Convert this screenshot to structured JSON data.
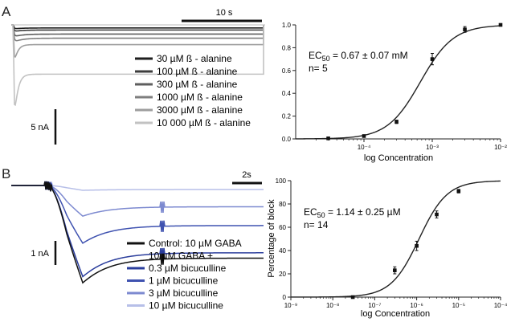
{
  "panels": [
    {
      "label": "A",
      "scale_bars": {
        "time": "10 s",
        "current": "5 nA"
      },
      "legend": [
        {
          "text": "30 µM ß - alanine",
          "color": "#1e1e1e"
        },
        {
          "text": "100 µM ß - alanine",
          "color": "#3c3c3c"
        },
        {
          "text": "300 µM ß - alanine",
          "color": "#5e5e5e"
        },
        {
          "text": "1000 µM ß - alanine",
          "color": "#7e7e7e"
        },
        {
          "text": "3000 µM ß - alanine",
          "color": "#9e9e9e"
        },
        {
          "text": "10 000 µM ß - alanine",
          "color": "#c2c2c2"
        }
      ],
      "trace_peaks_nA": [
        0.3,
        0.5,
        0.9,
        1.3,
        3.8,
        9.5
      ],
      "annotation": {
        "ec_prefix": "EC",
        "ec_sub": "50",
        "ec_value": " = 0.67 ±  0.07 mM",
        "n": "n= 5"
      }
    },
    {
      "label": "B",
      "scale_bars": {
        "time": "2s",
        "current": "1 nA"
      },
      "legend": [
        {
          "text": "Control: 10 µM GABA",
          "color": "#111111"
        },
        {
          "text": "10 µM GABA +",
          "color": null
        },
        {
          "text": "0.3 µM bicuculline",
          "color": "#2a3d9c"
        },
        {
          "text": "1 µM bicuculline",
          "color": "#3f52b0"
        },
        {
          "text": "3 µM bicuculline",
          "color": "#7d8ad0"
        },
        {
          "text": "10 µM bicuculline",
          "color": "#b7bfe8"
        }
      ],
      "trace_peaks_nA": [
        2.6,
        2.45,
        1.6,
        0.85,
        0.12
      ],
      "annotation": {
        "ec_prefix": "EC",
        "ec_sub": "50",
        "ec_value": " = 1.14 ± 0.25 µM",
        "n": "n= 14"
      }
    }
  ],
  "chart_data": [
    {
      "type": "scatter",
      "xlabel": "log Concentration",
      "ylabel": "",
      "x_scale": "log",
      "xlim": [
        1e-05,
        0.01
      ],
      "ylim": [
        0,
        1.0
      ],
      "x_tick_labels": [
        "10⁻⁴",
        "10⁻³",
        "10⁻²"
      ],
      "x_ticks": [
        0.0001,
        0.001,
        0.01
      ],
      "y_ticks": [
        0.0,
        0.2,
        0.4,
        0.6,
        0.8,
        1.0
      ],
      "y_tick_labels": [
        "0.0",
        "0.2",
        "0.4",
        "0.6",
        "0.8",
        "1.0"
      ],
      "fit": {
        "ec50": 0.00067,
        "hill": 1.8,
        "top": 1.0
      },
      "points": [
        {
          "x": 3e-05,
          "y": 0.005,
          "err": 0.005
        },
        {
          "x": 0.0001,
          "y": 0.025,
          "err": 0.006
        },
        {
          "x": 0.0003,
          "y": 0.15,
          "err": 0.015
        },
        {
          "x": 0.001,
          "y": 0.7,
          "err": 0.05
        },
        {
          "x": 0.003,
          "y": 0.96,
          "err": 0.025
        },
        {
          "x": 0.01,
          "y": 1.0,
          "err": 0.005
        }
      ]
    },
    {
      "type": "scatter",
      "xlabel": "log Concentration",
      "ylabel": "Percentage of block",
      "x_scale": "log",
      "xlim": [
        1e-09,
        0.0001
      ],
      "ylim": [
        0,
        100
      ],
      "x_tick_labels": [
        "10⁻⁹",
        "10⁻⁸",
        "10⁻⁷",
        "10⁻⁶",
        "10⁻⁵",
        "10⁻⁴"
      ],
      "x_ticks": [
        1e-09,
        1e-08,
        1e-07,
        1e-06,
        1e-05,
        0.0001
      ],
      "y_ticks": [
        0,
        20,
        40,
        60,
        80,
        100
      ],
      "y_tick_labels": [
        "0",
        "20",
        "40",
        "60",
        "80",
        "100"
      ],
      "fit": {
        "ec50": 1.14e-06,
        "hill": 1.3,
        "top": 100
      },
      "points": [
        {
          "x": 3e-08,
          "y": 0,
          "err": 1
        },
        {
          "x": 3e-07,
          "y": 23,
          "err": 3
        },
        {
          "x": 1e-06,
          "y": 44,
          "err": 4
        },
        {
          "x": 3e-06,
          "y": 71,
          "err": 3
        },
        {
          "x": 1e-05,
          "y": 91,
          "err": 1.5
        }
      ]
    }
  ]
}
